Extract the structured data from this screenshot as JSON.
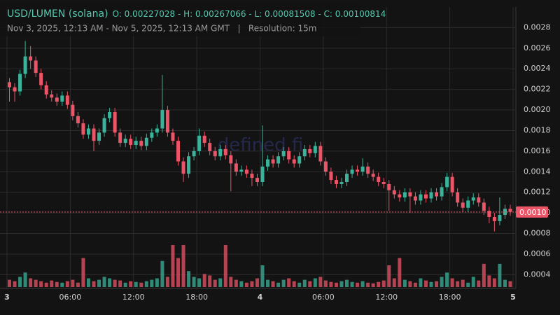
{
  "chart_data": {
    "type": "candlestick",
    "title": "USD/LUMEN (solana)",
    "ohlc_summary": "O: 0.00227028 - H: 0.00267066 - L: 0.00081508 - C: 0.00100814",
    "subtitle": "Nov 3, 2025, 12:13 AM - Nov 5, 2025, 12:13 AM GMT   |   Resolution: 15m",
    "watermark": "defined.fi",
    "up_color": "#3bb39a",
    "down_color": "#ec5468",
    "grid": true,
    "xlim": [
      0,
      48
    ],
    "xticks": [
      {
        "value": 0,
        "label": "3"
      },
      {
        "value": 6,
        "label": "06:00"
      },
      {
        "value": 12,
        "label": "12:00"
      },
      {
        "value": 18,
        "label": "18:00"
      },
      {
        "value": 24,
        "label": "4"
      },
      {
        "value": 30,
        "label": "06:00"
      },
      {
        "value": 36,
        "label": "12:00"
      },
      {
        "value": 42,
        "label": "18:00"
      },
      {
        "value": 48,
        "label": "5"
      }
    ],
    "ylim": [
      0.00028,
      0.003
    ],
    "yticks": [
      0.0004,
      0.0006,
      0.0008,
      {
        "value": 0.001,
        "label": "0.0010"
      },
      0.0012,
      0.0014,
      0.0016,
      0.0018,
      {
        "value": 0.002,
        "label": "0.0020"
      },
      0.0022,
      0.0024,
      0.0026,
      0.0028
    ],
    "price_line": {
      "value": 0.00100814,
      "label": "0.0010"
    },
    "x": [
      0,
      0.5,
      1,
      1.5,
      2,
      2.5,
      3,
      3.5,
      4,
      4.5,
      5,
      5.5,
      6,
      6.5,
      7,
      7.5,
      8,
      8.5,
      9,
      9.5,
      10,
      10.5,
      11,
      11.5,
      12,
      12.5,
      13,
      13.5,
      14,
      14.5,
      15,
      15.5,
      16,
      16.5,
      17,
      17.5,
      18,
      18.5,
      19,
      19.5,
      20,
      20.5,
      21,
      21.5,
      22,
      22.5,
      23,
      23.5,
      24,
      24.5,
      25,
      25.5,
      26,
      26.5,
      27,
      27.5,
      28,
      28.5,
      29,
      29.5,
      30,
      30.5,
      31,
      31.5,
      32,
      32.5,
      33,
      33.5,
      34,
      34.5,
      35,
      35.5,
      36,
      36.5,
      37,
      37.5,
      38,
      38.5,
      39,
      39.5,
      40,
      40.5,
      41,
      41.5,
      42,
      42.5,
      43,
      43.5,
      44,
      44.5,
      45,
      45.5,
      46,
      46.5,
      47,
      47.5
    ],
    "open": [
      0.00227,
      0.00222,
      0.00218,
      0.00235,
      0.00252,
      0.00248,
      0.00236,
      0.00224,
      0.00215,
      0.00212,
      0.00208,
      0.00214,
      0.00205,
      0.00194,
      0.00187,
      0.00176,
      0.00182,
      0.0017,
      0.00178,
      0.00192,
      0.00198,
      0.00178,
      0.00168,
      0.00172,
      0.00166,
      0.0017,
      0.00165,
      0.00173,
      0.00178,
      0.00182,
      0.002,
      0.00178,
      0.0017,
      0.0015,
      0.00138,
      0.00155,
      0.0016,
      0.00175,
      0.00168,
      0.0016,
      0.00155,
      0.00162,
      0.00156,
      0.00148,
      0.0014,
      0.00142,
      0.00138,
      0.00134,
      0.0013,
      0.00145,
      0.00152,
      0.00148,
      0.00155,
      0.0016,
      0.00152,
      0.00148,
      0.00155,
      0.00162,
      0.00158,
      0.00165,
      0.0015,
      0.0014,
      0.00132,
      0.00128,
      0.0013,
      0.00138,
      0.00142,
      0.0014,
      0.00145,
      0.00138,
      0.00135,
      0.0013,
      0.00128,
      0.00122,
      0.00118,
      0.00115,
      0.0012,
      0.00116,
      0.00112,
      0.00118,
      0.00114,
      0.0012,
      0.00116,
      0.00125,
      0.00135,
      0.0012,
      0.0011,
      0.00105,
      0.00112,
      0.00115,
      0.0011,
      0.00102,
      0.00096,
      0.00092,
      0.00098,
      0.00104
    ],
    "high": [
      0.00231,
      0.00226,
      0.00239,
      0.00267,
      0.00262,
      0.00252,
      0.0024,
      0.00228,
      0.00219,
      0.00216,
      0.00218,
      0.00218,
      0.00209,
      0.00198,
      0.00191,
      0.00186,
      0.00186,
      0.00182,
      0.00196,
      0.00202,
      0.00202,
      0.00182,
      0.00176,
      0.00176,
      0.00174,
      0.00174,
      0.00177,
      0.00182,
      0.00186,
      0.00234,
      0.00204,
      0.00182,
      0.00174,
      0.00154,
      0.00159,
      0.00164,
      0.00182,
      0.00179,
      0.00172,
      0.00164,
      0.00166,
      0.00166,
      0.0016,
      0.00152,
      0.00146,
      0.00146,
      0.00142,
      0.00138,
      0.00185,
      0.00156,
      0.00156,
      0.00159,
      0.00164,
      0.00164,
      0.00156,
      0.00159,
      0.00166,
      0.00166,
      0.00169,
      0.00169,
      0.00154,
      0.00144,
      0.00136,
      0.00134,
      0.00142,
      0.00146,
      0.00146,
      0.00153,
      0.00149,
      0.00142,
      0.00139,
      0.00134,
      0.00132,
      0.00126,
      0.00122,
      0.00124,
      0.00124,
      0.0012,
      0.00122,
      0.00122,
      0.00124,
      0.00124,
      0.00129,
      0.00139,
      0.00139,
      0.00124,
      0.00114,
      0.00116,
      0.00119,
      0.00119,
      0.00114,
      0.00106,
      0.001,
      0.00115,
      0.00108,
      0.00108
    ],
    "low": [
      0.00208,
      0.00208,
      0.00214,
      0.00231,
      0.0024,
      0.00232,
      0.0022,
      0.00211,
      0.00208,
      0.00204,
      0.00204,
      0.00201,
      0.0019,
      0.00183,
      0.00172,
      0.00172,
      0.0016,
      0.00166,
      0.00174,
      0.00188,
      0.00174,
      0.00164,
      0.00164,
      0.00162,
      0.00162,
      0.00161,
      0.00161,
      0.00169,
      0.00174,
      0.00178,
      0.00174,
      0.00166,
      0.00146,
      0.0013,
      0.00134,
      0.00151,
      0.00156,
      0.00164,
      0.00156,
      0.00151,
      0.00151,
      0.00152,
      0.00121,
      0.00136,
      0.00136,
      0.00134,
      0.00126,
      0.00126,
      0.00126,
      0.00141,
      0.00144,
      0.00144,
      0.00151,
      0.00148,
      0.00144,
      0.00144,
      0.00151,
      0.00154,
      0.00154,
      0.00146,
      0.00136,
      0.00128,
      0.00124,
      0.00124,
      0.00126,
      0.00134,
      0.00136,
      0.00136,
      0.00134,
      0.00131,
      0.00126,
      0.00124,
      0.00102,
      0.00114,
      0.00111,
      0.00111,
      0.001,
      0.00108,
      0.00108,
      0.0011,
      0.0011,
      0.00112,
      0.00112,
      0.00121,
      0.00116,
      0.00106,
      0.00101,
      0.00101,
      0.00108,
      0.00106,
      0.00098,
      0.0009,
      0.00082,
      0.00088,
      0.00094,
      0.00097
    ],
    "close": [
      0.00222,
      0.00218,
      0.00235,
      0.00252,
      0.00248,
      0.00236,
      0.00224,
      0.00215,
      0.00212,
      0.00208,
      0.00214,
      0.00205,
      0.00194,
      0.00187,
      0.00176,
      0.00182,
      0.0017,
      0.00178,
      0.00192,
      0.00198,
      0.00178,
      0.00168,
      0.00172,
      0.00166,
      0.0017,
      0.00165,
      0.00173,
      0.00178,
      0.00182,
      0.002,
      0.00178,
      0.0017,
      0.0015,
      0.00138,
      0.00155,
      0.0016,
      0.00175,
      0.00168,
      0.0016,
      0.00155,
      0.00162,
      0.00156,
      0.00148,
      0.0014,
      0.00142,
      0.00138,
      0.00134,
      0.0013,
      0.00145,
      0.00152,
      0.00148,
      0.00155,
      0.0016,
      0.00152,
      0.00148,
      0.00155,
      0.00162,
      0.00158,
      0.00165,
      0.0015,
      0.0014,
      0.00132,
      0.00128,
      0.0013,
      0.00138,
      0.00142,
      0.0014,
      0.00145,
      0.00138,
      0.00135,
      0.0013,
      0.00128,
      0.00122,
      0.00118,
      0.00115,
      0.0012,
      0.00116,
      0.00112,
      0.00118,
      0.00114,
      0.0012,
      0.00116,
      0.00125,
      0.00135,
      0.0012,
      0.0011,
      0.00105,
      0.00112,
      0.00115,
      0.0011,
      0.00102,
      0.00096,
      0.00092,
      0.00098,
      0.00104,
      0.00101
    ],
    "volume": [
      10,
      8,
      14,
      20,
      12,
      10,
      8,
      6,
      9,
      7,
      6,
      8,
      10,
      6,
      40,
      12,
      8,
      10,
      14,
      12,
      10,
      9,
      6,
      8,
      7,
      6,
      8,
      10,
      12,
      36,
      14,
      58,
      40,
      58,
      22,
      14,
      12,
      18,
      16,
      10,
      12,
      58,
      14,
      10,
      8,
      6,
      8,
      12,
      30,
      10,
      8,
      6,
      10,
      12,
      8,
      6,
      10,
      8,
      12,
      14,
      9,
      7,
      6,
      8,
      10,
      7,
      6,
      8,
      6,
      5,
      7,
      9,
      30,
      12,
      40,
      10,
      8,
      6,
      12,
      9,
      7,
      8,
      14,
      20,
      12,
      8,
      10,
      6,
      14,
      9,
      32,
      16,
      12,
      32,
      10,
      8
    ]
  }
}
